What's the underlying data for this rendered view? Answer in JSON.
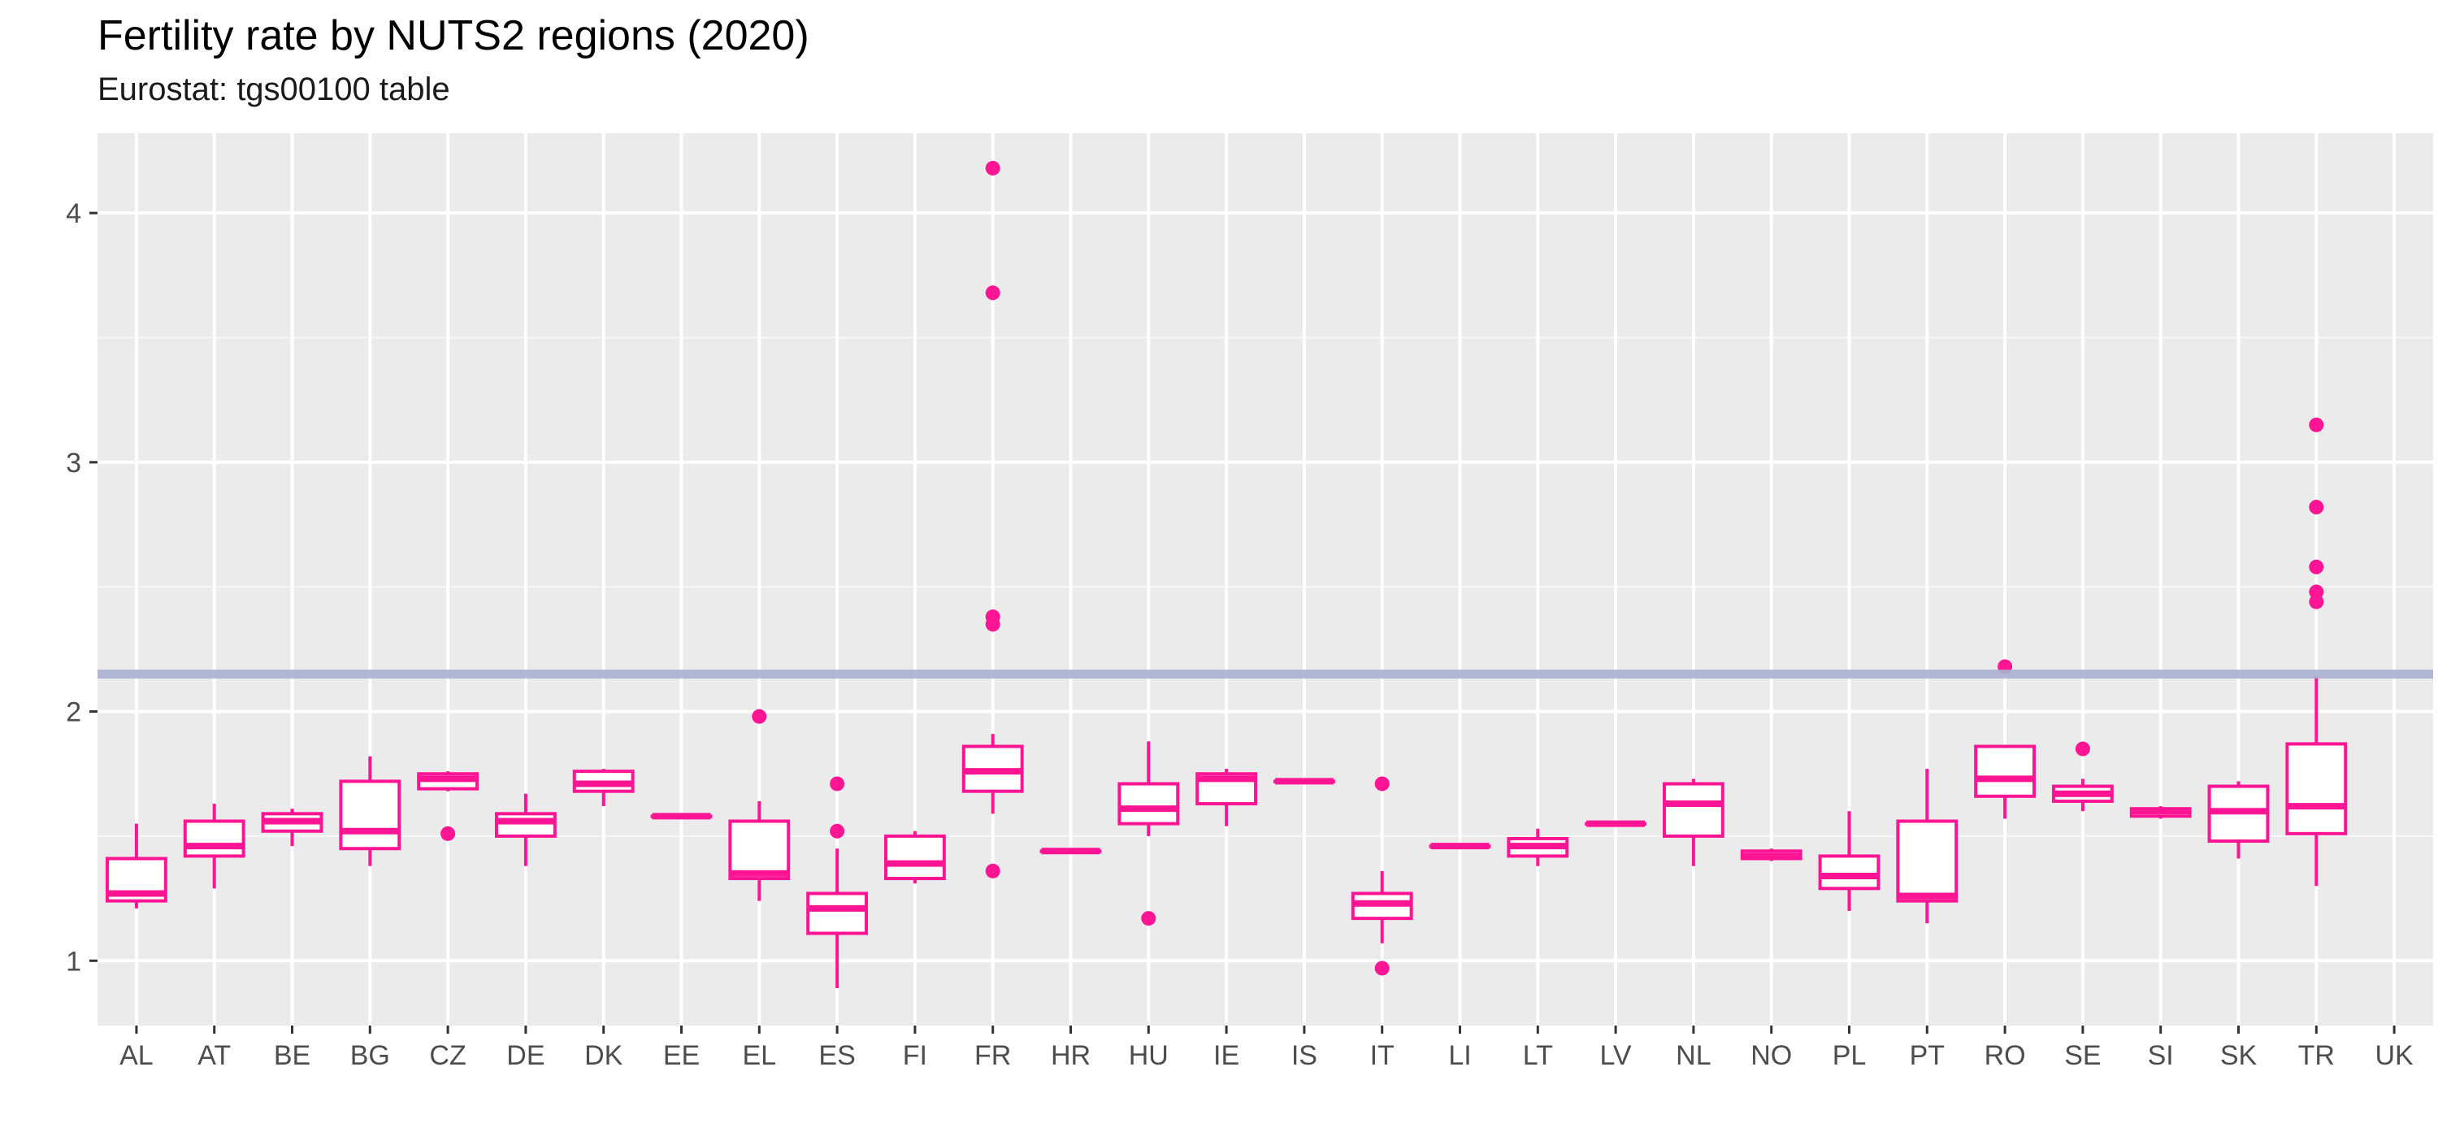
{
  "chart_data": {
    "type": "boxplot",
    "title": "Fertility rate by NUTS2 regions (2020)",
    "subtitle": "Eurostat: tgs00100 table",
    "xlabel": "",
    "ylabel": "",
    "ylim": [
      0.74,
      4.32
    ],
    "y_ticks": [
      1,
      2,
      3,
      4
    ],
    "y_minor_ticks": [
      1.5,
      2.5,
      3.5
    ],
    "grid": true,
    "reference_line": {
      "y": 2.15,
      "color": "#aab0d0"
    },
    "box_color": "#ff1493",
    "background": "#ebebeb",
    "categories": [
      "AL",
      "AT",
      "BE",
      "BG",
      "CZ",
      "DE",
      "DK",
      "EE",
      "EL",
      "ES",
      "FI",
      "FR",
      "HR",
      "HU",
      "IE",
      "IS",
      "IT",
      "LI",
      "LT",
      "LV",
      "NL",
      "NO",
      "PL",
      "PT",
      "RO",
      "SE",
      "SI",
      "SK",
      "TR",
      "UK"
    ],
    "boxes": [
      {
        "category": "AL",
        "min": 1.21,
        "q1": 1.24,
        "median": 1.27,
        "q3": 1.41,
        "max": 1.55,
        "outliers": []
      },
      {
        "category": "AT",
        "min": 1.29,
        "q1": 1.42,
        "median": 1.46,
        "q3": 1.56,
        "max": 1.63,
        "outliers": []
      },
      {
        "category": "BE",
        "min": 1.46,
        "q1": 1.52,
        "median": 1.56,
        "q3": 1.59,
        "max": 1.61,
        "outliers": []
      },
      {
        "category": "BG",
        "min": 1.38,
        "q1": 1.45,
        "median": 1.52,
        "q3": 1.72,
        "max": 1.82,
        "outliers": []
      },
      {
        "category": "CZ",
        "min": 1.68,
        "q1": 1.69,
        "median": 1.73,
        "q3": 1.75,
        "max": 1.76,
        "outliers": [
          1.51
        ]
      },
      {
        "category": "DE",
        "min": 1.38,
        "q1": 1.5,
        "median": 1.56,
        "q3": 1.59,
        "max": 1.67,
        "outliers": []
      },
      {
        "category": "DK",
        "min": 1.62,
        "q1": 1.68,
        "median": 1.71,
        "q3": 1.76,
        "max": 1.77,
        "outliers": []
      },
      {
        "category": "EE",
        "min": 1.58,
        "q1": 1.58,
        "median": 1.58,
        "q3": 1.58,
        "max": 1.58,
        "outliers": []
      },
      {
        "category": "EL",
        "min": 1.24,
        "q1": 1.33,
        "median": 1.35,
        "q3": 1.56,
        "max": 1.64,
        "outliers": [
          1.98
        ]
      },
      {
        "category": "ES",
        "min": 0.89,
        "q1": 1.11,
        "median": 1.21,
        "q3": 1.27,
        "max": 1.45,
        "outliers": [
          1.52,
          1.71
        ]
      },
      {
        "category": "FI",
        "min": 1.31,
        "q1": 1.33,
        "median": 1.39,
        "q3": 1.5,
        "max": 1.52,
        "outliers": []
      },
      {
        "category": "FR",
        "min": 1.59,
        "q1": 1.68,
        "median": 1.76,
        "q3": 1.86,
        "max": 1.91,
        "outliers": [
          1.36,
          2.35,
          2.38,
          3.68,
          4.18
        ]
      },
      {
        "category": "HR",
        "min": 1.44,
        "q1": 1.44,
        "median": 1.44,
        "q3": 1.44,
        "max": 1.44,
        "outliers": []
      },
      {
        "category": "HU",
        "min": 1.5,
        "q1": 1.55,
        "median": 1.61,
        "q3": 1.71,
        "max": 1.88,
        "outliers": [
          1.17
        ]
      },
      {
        "category": "IE",
        "min": 1.54,
        "q1": 1.63,
        "median": 1.73,
        "q3": 1.75,
        "max": 1.77,
        "outliers": []
      },
      {
        "category": "IS",
        "min": 1.72,
        "q1": 1.72,
        "median": 1.72,
        "q3": 1.72,
        "max": 1.72,
        "outliers": []
      },
      {
        "category": "IT",
        "min": 1.07,
        "q1": 1.17,
        "median": 1.23,
        "q3": 1.27,
        "max": 1.36,
        "outliers": [
          0.97,
          1.71
        ]
      },
      {
        "category": "LI",
        "min": 1.46,
        "q1": 1.46,
        "median": 1.46,
        "q3": 1.46,
        "max": 1.46,
        "outliers": []
      },
      {
        "category": "LT",
        "min": 1.38,
        "q1": 1.42,
        "median": 1.46,
        "q3": 1.49,
        "max": 1.53,
        "outliers": []
      },
      {
        "category": "LV",
        "min": 1.55,
        "q1": 1.55,
        "median": 1.55,
        "q3": 1.55,
        "max": 1.55,
        "outliers": []
      },
      {
        "category": "NL",
        "min": 1.38,
        "q1": 1.5,
        "median": 1.63,
        "q3": 1.71,
        "max": 1.73,
        "outliers": []
      },
      {
        "category": "NO",
        "min": 1.4,
        "q1": 1.41,
        "median": 1.42,
        "q3": 1.44,
        "max": 1.45,
        "outliers": []
      },
      {
        "category": "PL",
        "min": 1.2,
        "q1": 1.29,
        "median": 1.34,
        "q3": 1.42,
        "max": 1.6,
        "outliers": []
      },
      {
        "category": "PT",
        "min": 1.15,
        "q1": 1.24,
        "median": 1.26,
        "q3": 1.56,
        "max": 1.77,
        "outliers": []
      },
      {
        "category": "RO",
        "min": 1.57,
        "q1": 1.66,
        "median": 1.73,
        "q3": 1.86,
        "max": 1.86,
        "outliers": [
          2.18
        ]
      },
      {
        "category": "SE",
        "min": 1.6,
        "q1": 1.64,
        "median": 1.67,
        "q3": 1.7,
        "max": 1.73,
        "outliers": [
          1.85
        ]
      },
      {
        "category": "SI",
        "min": 1.57,
        "q1": 1.58,
        "median": 1.6,
        "q3": 1.61,
        "max": 1.62,
        "outliers": []
      },
      {
        "category": "SK",
        "min": 1.41,
        "q1": 1.48,
        "median": 1.6,
        "q3": 1.7,
        "max": 1.72,
        "outliers": []
      },
      {
        "category": "TR",
        "min": 1.3,
        "q1": 1.51,
        "median": 1.62,
        "q3": 1.87,
        "max": 2.14,
        "outliers": [
          2.44,
          2.48,
          2.58,
          2.82,
          3.15
        ]
      },
      {
        "category": "UK",
        "min": null,
        "q1": null,
        "median": null,
        "q3": null,
        "max": null,
        "outliers": []
      }
    ]
  }
}
